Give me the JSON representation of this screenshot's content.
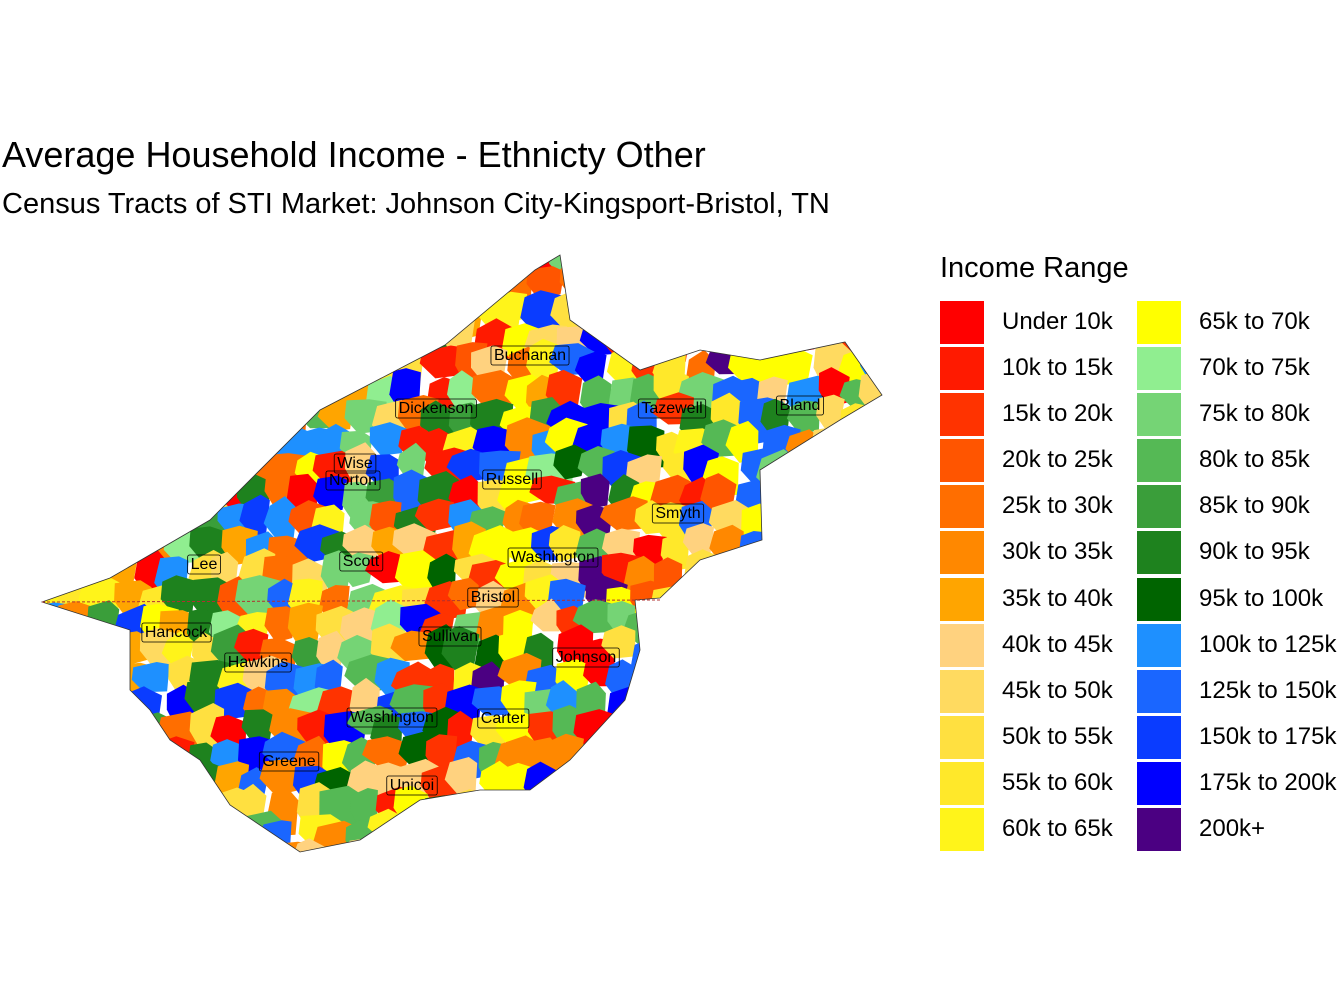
{
  "title": "Average Household Income - Ethnicty Other",
  "subtitle": "Census Tracts of STI Market: Johnson City-Kingsport-Bristol, TN",
  "legend": {
    "title": "Income Range",
    "items": [
      {
        "label": "Under 10k",
        "color": "#FF0000"
      },
      {
        "label": "10k to 15k",
        "color": "#FF1A00"
      },
      {
        "label": "15k to 20k",
        "color": "#FF3300"
      },
      {
        "label": "20k to 25k",
        "color": "#FF5500"
      },
      {
        "label": "25k to 30k",
        "color": "#FF6E00"
      },
      {
        "label": "30k to 35k",
        "color": "#FF8800"
      },
      {
        "label": "35k to 40k",
        "color": "#FFA500"
      },
      {
        "label": "40k to 45k",
        "color": "#FFD27F"
      },
      {
        "label": "45k to 50k",
        "color": "#FFDA60"
      },
      {
        "label": "50k to 55k",
        "color": "#FFE040"
      },
      {
        "label": "55k to 60k",
        "color": "#FFE82A"
      },
      {
        "label": "60k to 65k",
        "color": "#FFF41A"
      },
      {
        "label": "65k to 70k",
        "color": "#FFFF00"
      },
      {
        "label": "70k to 75k",
        "color": "#90EE90"
      },
      {
        "label": "75k to 80k",
        "color": "#75D475"
      },
      {
        "label": "80k to 85k",
        "color": "#55B955"
      },
      {
        "label": "85k to 90k",
        "color": "#3A9E3A"
      },
      {
        "label": "90k to 95k",
        "color": "#1E821E"
      },
      {
        "label": "95k to 100k",
        "color": "#006400"
      },
      {
        "label": "100k to 125k",
        "color": "#1E90FF"
      },
      {
        "label": "125k to 150k",
        "color": "#1A66FF"
      },
      {
        "label": "150k to 175k",
        "color": "#0A3CFF"
      },
      {
        "label": "175k to 200k",
        "color": "#0000FF"
      },
      {
        "label": "200k+",
        "color": "#4B0082"
      }
    ]
  },
  "counties": [
    "Buchanan",
    "Dickenson",
    "Tazewell",
    "Bland",
    "Wise",
    "Norton",
    "Russell",
    "Smyth",
    "Lee",
    "Scott",
    "Washington",
    "Bristol",
    "Hancock",
    "Sullivan",
    "Hawkins",
    "Johnson",
    "Washington",
    "Carter",
    "Greene",
    "Unicoi"
  ]
}
